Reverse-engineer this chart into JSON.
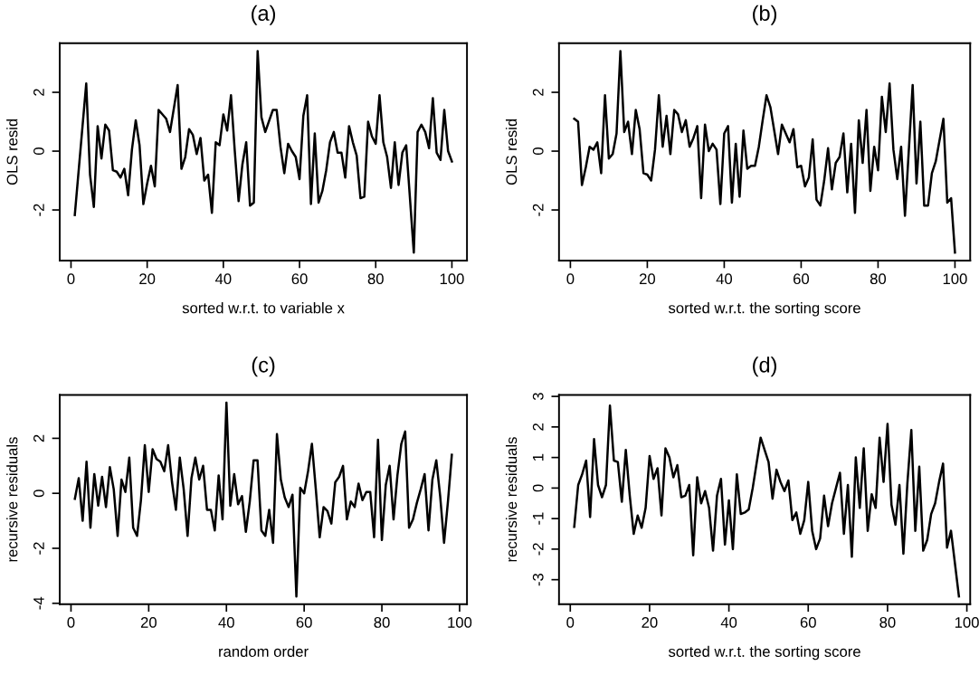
{
  "chart_data": [
    {
      "type": "line",
      "title": "(a)",
      "xlabel": "sorted w.r.t. to variable x",
      "ylabel": "OLS resid",
      "xlim": [
        -2.96,
        103.96
      ],
      "ylim": [
        -3.72,
        3.67
      ],
      "xticks": [
        0,
        20,
        40,
        60,
        80,
        100
      ],
      "yticks": [
        {
          "value": -2,
          "label": "-2"
        },
        0,
        2
      ],
      "grid": false,
      "series": [
        {
          "color": "#000000",
          "x": [
            1,
            4,
            5,
            6,
            7,
            8,
            9,
            10,
            11,
            12,
            13,
            14,
            15,
            16,
            17,
            18,
            19,
            20,
            21,
            22,
            23,
            25,
            26,
            28,
            29,
            30,
            31,
            32,
            33,
            34,
            35,
            36,
            37,
            38,
            39,
            40,
            41,
            42,
            43,
            44,
            45,
            46,
            47,
            48,
            49,
            50,
            51,
            53,
            54,
            55,
            56,
            57,
            58,
            59,
            60,
            61,
            62,
            63,
            64,
            65,
            66,
            67,
            68,
            69,
            70,
            71,
            72,
            73,
            74,
            75,
            76,
            77,
            78,
            79,
            80,
            81,
            82,
            83,
            84,
            85,
            86,
            87,
            88,
            90,
            91,
            92,
            93,
            94,
            95,
            96,
            97,
            98,
            99,
            100
          ],
          "values": [
            -2.17,
            2.3,
            -0.8,
            -1.9,
            0.85,
            -0.25,
            0.9,
            0.7,
            -0.65,
            -0.7,
            -0.9,
            -0.6,
            -1.5,
            0.05,
            1.05,
            0.2,
            -1.8,
            -1.1,
            -0.5,
            -1.2,
            1.4,
            1.1,
            0.65,
            2.25,
            -0.6,
            -0.2,
            0.75,
            0.55,
            -0.1,
            0.45,
            -1,
            -0.8,
            -2.1,
            0.3,
            0.2,
            1.25,
            0.7,
            1.9,
            0,
            -1.7,
            -0.45,
            0.3,
            -1.85,
            -1.75,
            3.4,
            1.15,
            0.65,
            1.4,
            1.4,
            0.15,
            -0.75,
            0.25,
            0,
            -0.2,
            -0.95,
            1.2,
            1.9,
            -1.8,
            0.6,
            -1.75,
            -1.35,
            -0.65,
            0.3,
            0.65,
            -0.05,
            -0.05,
            -0.9,
            0.85,
            0.3,
            -0.15,
            -1.6,
            -1.55,
            1,
            0.5,
            0.25,
            1.9,
            0.3,
            -0.2,
            -1.25,
            0.3,
            -1.15,
            -0.05,
            0.2,
            -3.45,
            0.65,
            0.9,
            0.65,
            0.1,
            1.8,
            -0.05,
            -0.3,
            1.4,
            0,
            -0.35
          ]
        }
      ]
    },
    {
      "type": "line",
      "title": "(b)",
      "xlabel": "sorted w.r.t. the sorting score",
      "ylabel": "OLS resid",
      "xlim": [
        -2.96,
        103.96
      ],
      "ylim": [
        -3.72,
        3.67
      ],
      "xticks": [
        0,
        20,
        40,
        60,
        80,
        100
      ],
      "yticks": [
        {
          "value": -2,
          "label": "-2"
        },
        0,
        2
      ],
      "grid": false,
      "series": [
        {
          "color": "#000000",
          "x": [
            1,
            2,
            3,
            4,
            5,
            6,
            7,
            8,
            9,
            10,
            11,
            12,
            13,
            14,
            15,
            16,
            17,
            18,
            19,
            20,
            21,
            22,
            23,
            24,
            25,
            26,
            27,
            28,
            29,
            30,
            31,
            32,
            33,
            34,
            35,
            36,
            37,
            38,
            39,
            40,
            41,
            42,
            43,
            44,
            45,
            46,
            47,
            48,
            49,
            50,
            51,
            52,
            53,
            54,
            55,
            56,
            57,
            58,
            59,
            60,
            61,
            62,
            63,
            64,
            65,
            66,
            67,
            68,
            69,
            70,
            71,
            72,
            73,
            74,
            75,
            76,
            77,
            78,
            79,
            80,
            81,
            82,
            83,
            84,
            85,
            86,
            87,
            89,
            90,
            91,
            92,
            93,
            94,
            95,
            97,
            98,
            99,
            100
          ],
          "values": [
            1.1,
            1.0,
            -1.15,
            -0.55,
            0.15,
            0.05,
            0.3,
            -0.75,
            1.9,
            -0.25,
            -0.1,
            0.6,
            3.4,
            0.65,
            1,
            -0.1,
            1.4,
            0.75,
            -0.75,
            -0.8,
            -1,
            0.05,
            1.9,
            0.15,
            1.2,
            -0.1,
            1.4,
            1.25,
            0.65,
            1.05,
            0.15,
            0.45,
            0.85,
            -1.6,
            0.9,
            0,
            0.25,
            0.05,
            -1.8,
            0.6,
            0.85,
            -1.75,
            0.25,
            -1.55,
            0.7,
            -0.6,
            -0.5,
            -0.5,
            0.15,
            1.05,
            1.9,
            1.5,
            0.7,
            -0.1,
            0.9,
            0.6,
            0.3,
            0.75,
            -0.55,
            -0.5,
            -1.2,
            -0.9,
            0.4,
            -1.65,
            -1.85,
            -1,
            0.1,
            -1.3,
            -0.4,
            -0.2,
            0.6,
            -1.4,
            0.25,
            -2.1,
            1.05,
            -0.4,
            1.4,
            -1.35,
            0.15,
            -0.65,
            1.85,
            0.65,
            2.3,
            0.05,
            -0.95,
            0.15,
            -2.2,
            2.25,
            -1.1,
            1,
            -1.85,
            -1.85,
            -0.75,
            -0.35,
            1.1,
            -1.75,
            -1.6,
            -3.45
          ]
        }
      ]
    },
    {
      "type": "line",
      "title": "(c)",
      "xlabel": "random order",
      "ylabel": "recursive residuals",
      "xlim": [
        -2.9,
        101.9
      ],
      "ylim": [
        -4.03,
        3.58
      ],
      "xticks": [
        0,
        20,
        40,
        60,
        80,
        100
      ],
      "yticks": [
        {
          "value": -4,
          "label": "-4"
        },
        {
          "value": -2,
          "label": "-2"
        },
        0,
        2
      ],
      "grid": false,
      "series": [
        {
          "color": "#000000",
          "x": [
            1,
            2,
            3,
            4,
            5,
            6,
            7,
            8,
            9,
            10,
            11,
            12,
            13,
            14,
            15,
            16,
            17,
            18,
            19,
            20,
            21,
            22,
            23,
            24,
            25,
            26,
            27,
            28,
            29,
            30,
            31,
            32,
            33,
            34,
            35,
            36,
            37,
            38,
            39,
            40,
            41,
            42,
            43,
            44,
            45,
            46,
            47,
            48,
            49,
            50,
            51,
            52,
            53,
            54,
            55,
            56,
            57,
            58,
            59,
            60,
            61,
            62,
            63,
            64,
            65,
            66,
            67,
            68,
            69,
            70,
            71,
            72,
            73,
            74,
            75,
            76,
            77,
            78,
            79,
            80,
            81,
            82,
            83,
            84,
            85,
            86,
            87,
            88,
            89,
            90,
            91,
            92,
            93,
            94,
            95,
            96,
            97,
            98
          ],
          "values": [
            -0.2,
            0.55,
            -1.0,
            1.15,
            -1.25,
            0.7,
            -0.45,
            0.6,
            -0.5,
            0.95,
            0.15,
            -1.55,
            0.5,
            0.05,
            1.3,
            -1.25,
            -1.55,
            -0.25,
            1.75,
            0.05,
            1.6,
            1.25,
            1.15,
            0.8,
            1.75,
            0.4,
            -0.6,
            1.3,
            0.15,
            -1.55,
            0.55,
            1.3,
            0.5,
            1,
            -0.6,
            -0.6,
            -1.35,
            0.65,
            -0.95,
            3.3,
            -0.45,
            0.7,
            -0.4,
            -0.1,
            -1.4,
            -0.3,
            1.2,
            1.2,
            -1.35,
            -1.55,
            -0.6,
            -1.8,
            2.15,
            0.5,
            -0.15,
            -0.5,
            -0.05,
            -3.75,
            0.2,
            0,
            0.8,
            1.8,
            0.15,
            -1.6,
            -0.5,
            -0.65,
            -1.1,
            0.4,
            0.6,
            1,
            -0.95,
            -0.3,
            -0.5,
            0.35,
            -0.25,
            0.05,
            0.05,
            -1.6,
            1.95,
            -1.7,
            0.3,
            1,
            -0.95,
            0.65,
            1.8,
            2.25,
            -1.25,
            -0.95,
            -0.35,
            0.15,
            0.7,
            -1.35,
            0.5,
            1.2,
            -0.1,
            -1.8,
            -0.3,
            1.4
          ]
        }
      ]
    },
    {
      "type": "line",
      "title": "(d)",
      "xlabel": "sorted w.r.t. the sorting score",
      "ylabel": "recursive residuals",
      "xlim": [
        -2.84,
        100.84
      ],
      "ylim": [
        -3.8,
        3.05
      ],
      "xticks": [
        0,
        20,
        40,
        60,
        80,
        100
      ],
      "yticks": [
        {
          "value": -3,
          "label": "-3"
        },
        {
          "value": -2,
          "label": "-2"
        },
        {
          "value": -1,
          "label": "-1"
        },
        0,
        1,
        2,
        3
      ],
      "grid": false,
      "series": [
        {
          "color": "#000000",
          "x": [
            1,
            2,
            3,
            4,
            5,
            6,
            7,
            8,
            9,
            10,
            11,
            12,
            13,
            14,
            15,
            16,
            17,
            18,
            19,
            20,
            21,
            22,
            23,
            24,
            25,
            26,
            27,
            28,
            29,
            30,
            31,
            32,
            33,
            34,
            35,
            36,
            37,
            38,
            39,
            40,
            41,
            42,
            43,
            44,
            45,
            46,
            48,
            50,
            51,
            52,
            53,
            54,
            55,
            56,
            57,
            58,
            59,
            60,
            61,
            62,
            63,
            64,
            65,
            66,
            67,
            68,
            69,
            70,
            71,
            72,
            73,
            74,
            75,
            76,
            77,
            78,
            79,
            80,
            81,
            82,
            83,
            84,
            85,
            86,
            87,
            88,
            89,
            90,
            91,
            92,
            93,
            94,
            95,
            96,
            98
          ],
          "values": [
            -1.27,
            0.1,
            0.45,
            0.9,
            -0.95,
            1.6,
            0.1,
            -0.3,
            0.1,
            2.7,
            0.9,
            0.85,
            -0.45,
            1.25,
            -0.25,
            -1.5,
            -0.9,
            -1.3,
            -0.65,
            1.05,
            0.3,
            0.65,
            -0.9,
            1.3,
            1,
            0.35,
            0.75,
            -0.3,
            -0.25,
            0.1,
            -2.2,
            0.35,
            -0.5,
            -0.1,
            -0.65,
            -2.05,
            -0.25,
            0.3,
            -1.85,
            -0.4,
            -2.0,
            0.45,
            -0.85,
            -0.8,
            -0.7,
            0,
            1.65,
            0.85,
            -0.35,
            0.6,
            0.2,
            -0.1,
            0.25,
            -1.05,
            -0.8,
            -1.5,
            -1.05,
            0.2,
            -1.4,
            -2.0,
            -1.65,
            -0.25,
            -1.25,
            -0.5,
            0,
            0.5,
            -1.5,
            0.1,
            -2.25,
            1,
            -0.65,
            1.3,
            -1.4,
            -0.2,
            -0.65,
            1.65,
            0.2,
            2.1,
            -0.55,
            -1.2,
            0.1,
            -2.15,
            0.15,
            1.9,
            -1.4,
            0.7,
            -2.05,
            -1.7,
            -0.85,
            -0.5,
            0.2,
            0.8,
            -1.95,
            -1.4,
            -3.55
          ]
        }
      ]
    }
  ]
}
